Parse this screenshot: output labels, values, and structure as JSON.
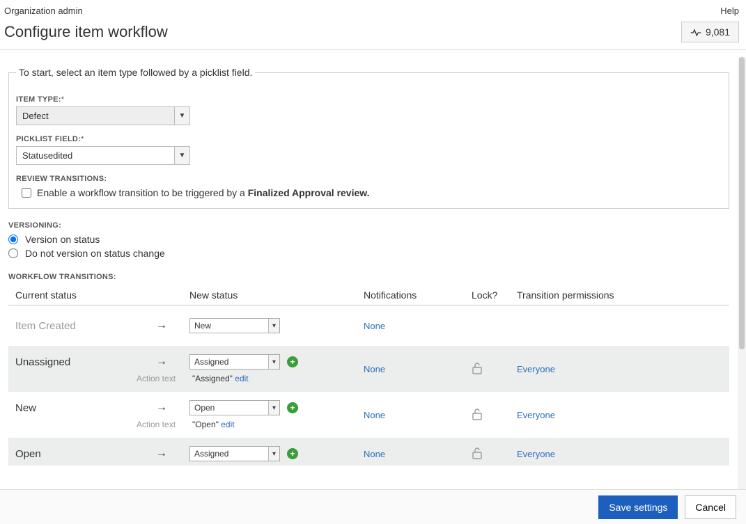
{
  "topbar": {
    "breadcrumb": "Organization admin",
    "help": "Help"
  },
  "header": {
    "title": "Configure item workflow",
    "count": "9,081"
  },
  "setup": {
    "legend": "To start, select an item type followed by a picklist field.",
    "item_type_label": "ITEM TYPE:",
    "item_type_value": "Defect",
    "picklist_label": "PICKLIST FIELD:",
    "picklist_value": "Statusedited",
    "review_label": "REVIEW TRANSITIONS:",
    "review_checkbox_prefix": "Enable a workflow transition to be triggered by a ",
    "review_checkbox_bold": "Finalized Approval review.",
    "required_marker": "*"
  },
  "versioning": {
    "label": "VERSIONING:",
    "opt1": "Version on status",
    "opt2": "Do not version on status change",
    "selected": "opt1"
  },
  "transitions": {
    "label": "WORKFLOW TRANSITIONS:",
    "headers": {
      "current": "Current status",
      "new": "New status",
      "notif": "Notifications",
      "lock": "Lock?",
      "perm": "Transition permissions"
    },
    "action_text_label": "Action text",
    "edit_link": "edit",
    "rows": [
      {
        "shaded": false,
        "current": "Item Created",
        "current_muted": true,
        "new_value": "New",
        "has_add": false,
        "action_text": null,
        "notif": "None",
        "lock": false,
        "perm": null
      },
      {
        "shaded": true,
        "current": "Unassigned",
        "current_muted": false,
        "new_value": "Assigned",
        "has_add": true,
        "action_text": "\"Assigned\"",
        "notif": "None",
        "lock": true,
        "perm": "Everyone"
      },
      {
        "shaded": false,
        "current": "New",
        "current_muted": false,
        "new_value": "Open",
        "has_add": true,
        "action_text": "\"Open\"",
        "notif": "None",
        "lock": true,
        "perm": "Everyone"
      },
      {
        "shaded": true,
        "current": "Open",
        "current_muted": false,
        "new_value": "Assigned",
        "has_add": true,
        "action_text": null,
        "notif": "None",
        "lock": true,
        "perm": "Everyone"
      }
    ]
  },
  "footer": {
    "save": "Save settings",
    "cancel": "Cancel"
  }
}
